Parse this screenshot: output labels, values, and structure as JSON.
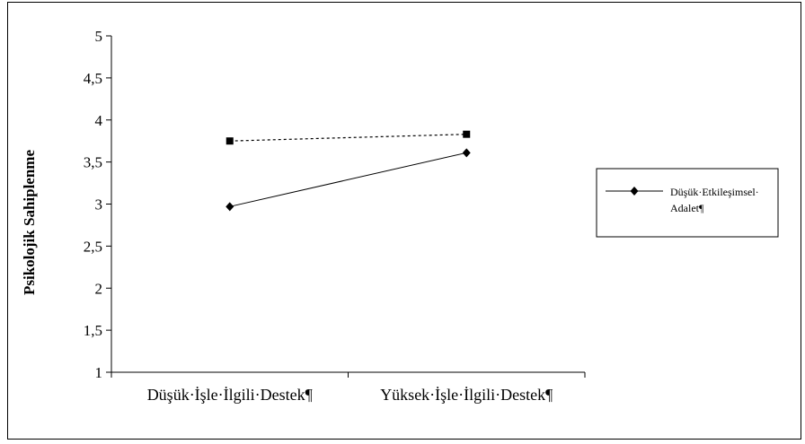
{
  "chart_data": {
    "type": "line",
    "categories": [
      "Düşük·İşle·İlgili·Destek¶",
      "Yüksek·İşle·İlgili·Destek¶"
    ],
    "ylabel": "Psikolojik Sahiplenme",
    "ylim": [
      1,
      5
    ],
    "yticks": [
      "1",
      "1,5",
      "2",
      "2,5",
      "3",
      "3,5",
      "4",
      "4,5",
      "5"
    ],
    "series": [
      {
        "name": "Düşük·Etkileşimsel· Adalet¶",
        "legend_lines": [
          "Düşük·Etkileşimsel·",
          "Adalet¶"
        ],
        "marker": "diamond",
        "dash": "solid",
        "values": [
          2.97,
          3.61
        ]
      },
      {
        "marker": "square",
        "dash": "dotted",
        "values": [
          3.75,
          3.83
        ]
      }
    ],
    "grid": false,
    "legend": "right"
  }
}
